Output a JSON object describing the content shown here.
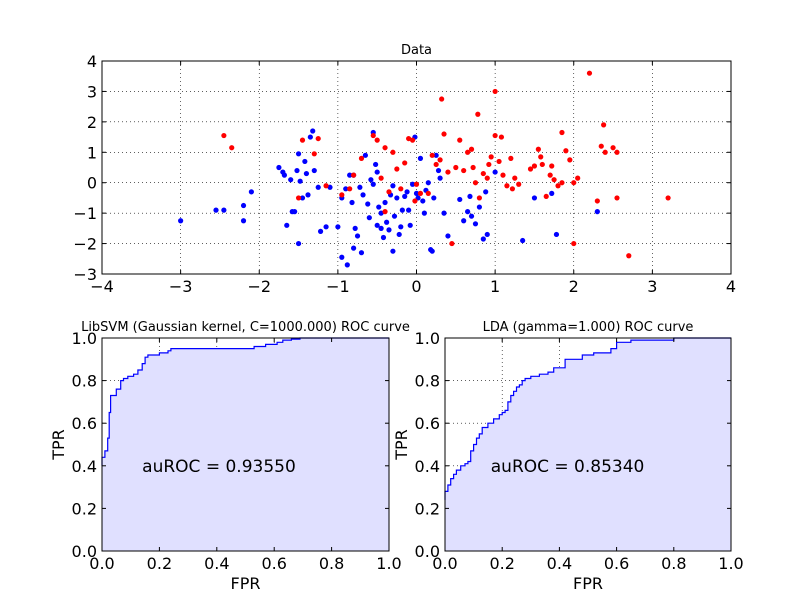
{
  "chart_data": [
    {
      "type": "scatter",
      "title": "Data",
      "xlim": [
        -4,
        4
      ],
      "ylim": [
        -3,
        4
      ],
      "xticks": [
        "−4",
        "−3",
        "−2",
        "−1",
        "0",
        "1",
        "2",
        "3",
        "4"
      ],
      "yticks": [
        "−3",
        "−2",
        "−1",
        "0",
        "1",
        "2",
        "3",
        "4"
      ],
      "grid": true,
      "series": [
        {
          "color": "#0000ff",
          "points": [
            [
              -3.0,
              -1.25
            ],
            [
              -2.55,
              -0.9
            ],
            [
              -2.45,
              -0.9
            ],
            [
              -2.2,
              -0.75
            ],
            [
              -2.2,
              -1.25
            ],
            [
              -2.1,
              -0.3
            ],
            [
              -1.75,
              0.5
            ],
            [
              -1.7,
              0.35
            ],
            [
              -1.68,
              0.25
            ],
            [
              -1.65,
              -1.4
            ],
            [
              -1.6,
              0.1
            ],
            [
              -1.58,
              -0.95
            ],
            [
              -1.55,
              -0.95
            ],
            [
              -1.52,
              0.4
            ],
            [
              -1.5,
              -2.0
            ],
            [
              -1.5,
              0.95
            ],
            [
              -1.48,
              0.05
            ],
            [
              -1.45,
              -0.5
            ],
            [
              -1.42,
              0.7
            ],
            [
              -1.4,
              0.3
            ],
            [
              -1.38,
              -0.4
            ],
            [
              -1.35,
              1.5
            ],
            [
              -1.32,
              1.7
            ],
            [
              -1.3,
              0.4
            ],
            [
              -1.25,
              -0.15
            ],
            [
              -1.22,
              -1.6
            ],
            [
              -1.15,
              -1.45
            ],
            [
              -1.1,
              -0.15
            ],
            [
              -1.0,
              -1.45
            ],
            [
              -0.95,
              -0.5
            ],
            [
              -0.95,
              -2.45
            ],
            [
              -0.9,
              -0.2
            ],
            [
              -0.88,
              -2.7
            ],
            [
              -0.85,
              0.25
            ],
            [
              -0.82,
              -0.65
            ],
            [
              -0.8,
              -2.15
            ],
            [
              -0.8,
              0.25
            ],
            [
              -0.78,
              -1.5
            ],
            [
              -0.75,
              -1.75
            ],
            [
              -0.72,
              -0.15
            ],
            [
              -0.7,
              -2.3
            ],
            [
              -0.68,
              -0.4
            ],
            [
              -0.65,
              0.9
            ],
            [
              -0.62,
              -0.7
            ],
            [
              -0.6,
              -1.15
            ],
            [
              -0.58,
              0.1
            ],
            [
              -0.55,
              -0.05
            ],
            [
              -0.55,
              1.65
            ],
            [
              -0.52,
              0.6
            ],
            [
              -0.5,
              0.35
            ],
            [
              -0.5,
              -1.4
            ],
            [
              -0.48,
              -0.8
            ],
            [
              -0.45,
              -1.0
            ],
            [
              -0.45,
              -1.5
            ],
            [
              -0.42,
              -1.8
            ],
            [
              -0.4,
              -0.65
            ],
            [
              -0.38,
              -1.3
            ],
            [
              -0.35,
              -1.55
            ],
            [
              -0.33,
              -0.4
            ],
            [
              -0.3,
              -0.1
            ],
            [
              -0.3,
              -2.25
            ],
            [
              -0.28,
              -1.1
            ],
            [
              -0.25,
              -0.5
            ],
            [
              -0.22,
              -1.7
            ],
            [
              -0.2,
              -1.45
            ],
            [
              -0.18,
              -0.9
            ],
            [
              -0.15,
              -0.45
            ],
            [
              -0.12,
              -0.3
            ],
            [
              -0.1,
              -0.9
            ],
            [
              -0.08,
              -1.4
            ],
            [
              -0.05,
              -0.05
            ],
            [
              -0.02,
              1.5
            ],
            [
              0.0,
              -0.35
            ],
            [
              0.02,
              -0.5
            ],
            [
              0.05,
              0.8
            ],
            [
              0.08,
              -0.6
            ],
            [
              0.1,
              -1.0
            ],
            [
              0.12,
              -0.25
            ],
            [
              0.15,
              0.0
            ],
            [
              0.18,
              -2.2
            ],
            [
              0.2,
              -2.25
            ],
            [
              0.22,
              -0.5
            ],
            [
              0.25,
              0.9
            ],
            [
              0.28,
              0.4
            ],
            [
              0.3,
              0.15
            ],
            [
              0.35,
              -1.0
            ],
            [
              0.4,
              -1.75
            ],
            [
              0.55,
              -0.55
            ],
            [
              0.6,
              -1.25
            ],
            [
              0.65,
              -0.95
            ],
            [
              0.68,
              -0.45
            ],
            [
              0.7,
              -1.1
            ],
            [
              0.75,
              -1.35
            ],
            [
              0.8,
              -0.8
            ],
            [
              0.85,
              -1.85
            ],
            [
              0.88,
              -0.3
            ],
            [
              0.9,
              -1.7
            ],
            [
              1.0,
              0.35
            ],
            [
              1.35,
              -1.9
            ],
            [
              1.5,
              -0.5
            ],
            [
              1.72,
              -0.35
            ],
            [
              1.78,
              -1.7
            ],
            [
              2.3,
              -0.95
            ]
          ]
        },
        {
          "color": "#ff0000",
          "points": [
            [
              -2.45,
              1.55
            ],
            [
              -2.35,
              1.15
            ],
            [
              -1.5,
              -0.5
            ],
            [
              -1.45,
              1.4
            ],
            [
              -1.3,
              0.95
            ],
            [
              -1.25,
              1.45
            ],
            [
              -1.15,
              -0.1
            ],
            [
              -0.95,
              -0.4
            ],
            [
              -0.85,
              -0.2
            ],
            [
              -0.8,
              0.25
            ],
            [
              -0.7,
              0.8
            ],
            [
              -0.55,
              1.55
            ],
            [
              -0.5,
              1.4
            ],
            [
              -0.45,
              0.15
            ],
            [
              -0.4,
              -0.95
            ],
            [
              -0.4,
              1.15
            ],
            [
              -0.35,
              -0.3
            ],
            [
              -0.3,
              1.0
            ],
            [
              -0.25,
              0.45
            ],
            [
              -0.2,
              -0.2
            ],
            [
              -0.15,
              0.65
            ],
            [
              -0.1,
              1.45
            ],
            [
              -0.05,
              1.4
            ],
            [
              -0.02,
              -0.6
            ],
            [
              0.0,
              -0.05
            ],
            [
              0.05,
              -0.35
            ],
            [
              0.15,
              -0.35
            ],
            [
              0.2,
              0.9
            ],
            [
              0.25,
              0.6
            ],
            [
              0.3,
              0.75
            ],
            [
              0.32,
              2.75
            ],
            [
              0.35,
              1.6
            ],
            [
              0.4,
              0.35
            ],
            [
              0.45,
              -2.0
            ],
            [
              0.5,
              0.5
            ],
            [
              0.55,
              1.4
            ],
            [
              0.6,
              0.4
            ],
            [
              0.65,
              1.0
            ],
            [
              0.7,
              1.1
            ],
            [
              0.72,
              0.5
            ],
            [
              0.75,
              0.0
            ],
            [
              0.78,
              2.25
            ],
            [
              0.8,
              -0.5
            ],
            [
              0.85,
              0.3
            ],
            [
              0.9,
              0.15
            ],
            [
              0.92,
              0.6
            ],
            [
              0.95,
              0.85
            ],
            [
              1.0,
              3.0
            ],
            [
              1.0,
              1.55
            ],
            [
              1.05,
              0.7
            ],
            [
              1.08,
              1.5
            ],
            [
              1.1,
              0.25
            ],
            [
              1.15,
              -0.1
            ],
            [
              1.2,
              0.8
            ],
            [
              1.22,
              -0.2
            ],
            [
              1.25,
              0.15
            ],
            [
              1.3,
              -0.05
            ],
            [
              1.45,
              0.45
            ],
            [
              1.5,
              0.55
            ],
            [
              1.55,
              1.1
            ],
            [
              1.58,
              0.85
            ],
            [
              1.6,
              0.6
            ],
            [
              1.65,
              -0.45
            ],
            [
              1.7,
              0.25
            ],
            [
              1.72,
              0.55
            ],
            [
              1.75,
              0.1
            ],
            [
              1.8,
              -0.1
            ],
            [
              1.85,
              1.65
            ],
            [
              1.85,
              0.0
            ],
            [
              1.9,
              1.05
            ],
            [
              1.95,
              0.75
            ],
            [
              2.0,
              0.0
            ],
            [
              2.0,
              -2.0
            ],
            [
              2.05,
              0.15
            ],
            [
              2.2,
              3.6
            ],
            [
              2.3,
              -0.6
            ],
            [
              2.35,
              1.2
            ],
            [
              2.38,
              1.9
            ],
            [
              2.4,
              1.0
            ],
            [
              2.5,
              1.15
            ],
            [
              2.55,
              -0.5
            ],
            [
              2.55,
              1.0
            ],
            [
              2.7,
              -2.4
            ],
            [
              3.2,
              -0.5
            ]
          ]
        }
      ]
    },
    {
      "type": "area",
      "title": "LibSVM (Gaussian kernel, C=1000.000) ROC curve",
      "xlabel": "FPR",
      "ylabel": "TPR",
      "xlim": [
        0,
        1
      ],
      "ylim": [
        0,
        1
      ],
      "xticks": [
        "0.0",
        "0.2",
        "0.4",
        "0.6",
        "0.8",
        "1.0"
      ],
      "yticks": [
        "0.0",
        "0.2",
        "0.4",
        "0.6",
        "0.8",
        "1.0"
      ],
      "annotation": "auROC = 0.93550",
      "line_color": "#0000ff",
      "fill_color": "#e0e0ff",
      "x": [
        0.0,
        0.0,
        0.01,
        0.01,
        0.02,
        0.02,
        0.025,
        0.025,
        0.03,
        0.03,
        0.05,
        0.05,
        0.065,
        0.065,
        0.075,
        0.075,
        0.09,
        0.09,
        0.11,
        0.11,
        0.125,
        0.125,
        0.14,
        0.14,
        0.15,
        0.15,
        0.16,
        0.16,
        0.2,
        0.2,
        0.23,
        0.23,
        0.24,
        0.24,
        0.38,
        0.38,
        0.53,
        0.53,
        0.57,
        0.57,
        0.61,
        0.61,
        0.63,
        0.63,
        0.66,
        0.66,
        0.69,
        0.69,
        1.0
      ],
      "y": [
        0.4,
        0.44,
        0.44,
        0.47,
        0.47,
        0.53,
        0.53,
        0.65,
        0.65,
        0.73,
        0.73,
        0.76,
        0.76,
        0.8,
        0.8,
        0.81,
        0.81,
        0.82,
        0.82,
        0.83,
        0.83,
        0.85,
        0.85,
        0.88,
        0.88,
        0.91,
        0.91,
        0.92,
        0.92,
        0.93,
        0.93,
        0.94,
        0.94,
        0.95,
        0.95,
        0.95,
        0.95,
        0.96,
        0.96,
        0.97,
        0.97,
        0.98,
        0.98,
        0.99,
        0.99,
        0.995,
        0.995,
        1.0,
        1.0
      ]
    },
    {
      "type": "area",
      "title": "LDA (gamma=1.000) ROC curve",
      "xlabel": "FPR",
      "ylabel": "TPR",
      "xlim": [
        0,
        1
      ],
      "ylim": [
        0,
        1
      ],
      "xticks": [
        "0.0",
        "0.2",
        "0.4",
        "0.6",
        "0.8",
        "1.0"
      ],
      "yticks": [
        "0.0",
        "0.2",
        "0.4",
        "0.6",
        "0.8",
        "1.0"
      ],
      "annotation": "auROC = 0.85340",
      "line_color": "#0000ff",
      "fill_color": "#e0e0ff",
      "x": [
        0.0,
        0.0,
        0.01,
        0.01,
        0.02,
        0.02,
        0.03,
        0.03,
        0.04,
        0.04,
        0.055,
        0.055,
        0.07,
        0.07,
        0.08,
        0.08,
        0.09,
        0.09,
        0.1,
        0.1,
        0.11,
        0.11,
        0.12,
        0.12,
        0.13,
        0.13,
        0.15,
        0.15,
        0.17,
        0.17,
        0.19,
        0.19,
        0.2,
        0.2,
        0.21,
        0.21,
        0.22,
        0.22,
        0.23,
        0.23,
        0.24,
        0.24,
        0.25,
        0.25,
        0.26,
        0.26,
        0.27,
        0.27,
        0.28,
        0.28,
        0.3,
        0.3,
        0.33,
        0.33,
        0.36,
        0.36,
        0.38,
        0.38,
        0.42,
        0.42,
        0.48,
        0.48,
        0.52,
        0.52,
        0.58,
        0.58,
        0.6,
        0.6,
        0.65,
        0.65,
        0.8,
        0.8,
        1.0
      ],
      "y": [
        0.24,
        0.28,
        0.28,
        0.31,
        0.31,
        0.34,
        0.34,
        0.36,
        0.36,
        0.38,
        0.38,
        0.4,
        0.4,
        0.41,
        0.41,
        0.42,
        0.42,
        0.47,
        0.47,
        0.5,
        0.5,
        0.53,
        0.53,
        0.55,
        0.55,
        0.58,
        0.58,
        0.6,
        0.6,
        0.62,
        0.62,
        0.64,
        0.64,
        0.65,
        0.65,
        0.66,
        0.66,
        0.7,
        0.7,
        0.73,
        0.73,
        0.75,
        0.75,
        0.77,
        0.77,
        0.78,
        0.78,
        0.8,
        0.8,
        0.81,
        0.81,
        0.82,
        0.82,
        0.83,
        0.83,
        0.84,
        0.84,
        0.86,
        0.86,
        0.9,
        0.9,
        0.92,
        0.92,
        0.93,
        0.93,
        0.95,
        0.95,
        0.98,
        0.98,
        0.99,
        0.99,
        1.0,
        1.0
      ]
    }
  ]
}
